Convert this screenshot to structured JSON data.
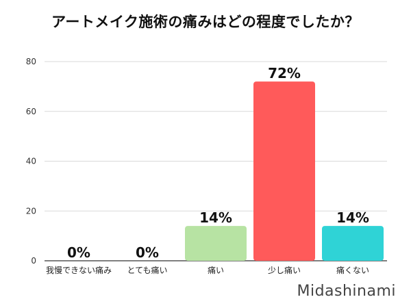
{
  "chart_data": {
    "type": "bar",
    "title": "アートメイク施術の痛みはどの程度でしたか？",
    "categories": [
      "我慢できない痛み",
      "とても痛い",
      "痛い",
      "少し痛い",
      "痛くない"
    ],
    "values": [
      0,
      0,
      14,
      72,
      14
    ],
    "value_labels": [
      "0%",
      "0%",
      "14%",
      "72%",
      "14%"
    ],
    "colors": [
      "#b7e3a3",
      "#b7e3a3",
      "#b7e3a3",
      "#ff5a5a",
      "#2fd3d6"
    ],
    "ylim": [
      0,
      80
    ],
    "yticks": [
      "0",
      "20",
      "40",
      "60",
      "80"
    ],
    "ytick_values": [
      0,
      20,
      40,
      60,
      80
    ],
    "grid": true,
    "xlabel": "",
    "ylabel": ""
  },
  "watermark": "Midashinami"
}
